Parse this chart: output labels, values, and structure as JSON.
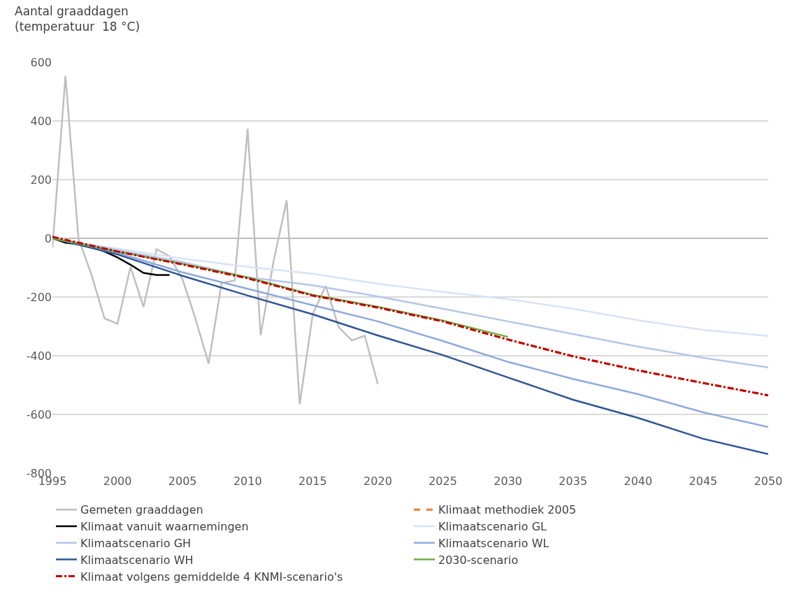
{
  "chart_data": {
    "type": "line",
    "ylabel": "Aantal graaddagen\n(temperatuur  18 °C)",
    "xlim": [
      1995,
      2050
    ],
    "xticks": [
      1995,
      2000,
      2005,
      2010,
      2015,
      2020,
      2025,
      2030,
      2035,
      2040,
      2045,
      2050
    ],
    "ylim": [
      -800,
      600
    ],
    "yticks": [
      -800,
      -600,
      -400,
      -200,
      0,
      200,
      400,
      600
    ],
    "grid": "y",
    "legend": "bottom",
    "marker": "none",
    "series": [
      {
        "name": "Gemeten graaddagen",
        "color": "#bfbfbf",
        "x": [
          1995,
          1996,
          1997,
          1998,
          1999,
          2000,
          2001,
          2002,
          2003,
          2004,
          2005,
          2006,
          2007,
          2008,
          2009,
          2010,
          2011,
          2012,
          2013,
          2014,
          2015,
          2016,
          2017,
          2018,
          2019,
          2020
        ],
        "values": [
          -33,
          553,
          0,
          -124,
          -273,
          -291,
          -97,
          -234,
          -37,
          -61,
          -140,
          -275,
          -427,
          -152,
          -144,
          373,
          -330,
          -77,
          129,
          -565,
          -259,
          -162,
          -303,
          -348,
          -332,
          -497
        ]
      },
      {
        "name": "Klimaat methodiek 2005",
        "color": "#ed7d31",
        "line_style": "dashed",
        "x": [
          1995,
          2000,
          2005,
          2010,
          2015,
          2020,
          2025,
          2030,
          2035,
          2040,
          2045,
          2050
        ],
        "values": [
          5,
          -45,
          -89,
          -136,
          -195,
          -236,
          -283,
          -345,
          -402,
          -450,
          -493,
          -535
        ]
      },
      {
        "name": "Klimaat vanuit waarnemingen",
        "color": "#000000",
        "x": [
          1995,
          1996,
          1997,
          1998,
          1999,
          2000,
          2001,
          2002,
          2003,
          2004
        ],
        "values": [
          0,
          -15,
          -20,
          -30,
          -45,
          -65,
          -90,
          -118,
          -125,
          -125
        ]
      },
      {
        "name": "Klimaatscenario GL",
        "color": "#dae3f3",
        "x": [
          1995,
          2000,
          2005,
          2010,
          2015,
          2020,
          2025,
          2030,
          2035,
          2040,
          2045,
          2050
        ],
        "values": [
          0,
          -35,
          -69,
          -97,
          -121,
          -155,
          -183,
          -207,
          -240,
          -279,
          -312,
          -333
        ]
      },
      {
        "name": "Klimaatscenario GH",
        "color": "#b4c7e7",
        "x": [
          1995,
          2000,
          2005,
          2010,
          2015,
          2020,
          2025,
          2030,
          2035,
          2040,
          2045,
          2050
        ],
        "values": [
          0,
          -40,
          -81,
          -133,
          -160,
          -198,
          -240,
          -283,
          -326,
          -369,
          -407,
          -440
        ]
      },
      {
        "name": "Klimaatscenario WL",
        "color": "#8faadc",
        "x": [
          1995,
          2000,
          2005,
          2010,
          2015,
          2020,
          2025,
          2030,
          2035,
          2040,
          2045,
          2050
        ],
        "values": [
          0,
          -50,
          -116,
          -172,
          -228,
          -283,
          -350,
          -421,
          -479,
          -531,
          -593,
          -643
        ]
      },
      {
        "name": "Klimaatscenario WH",
        "color": "#2f5597",
        "x": [
          1995,
          2000,
          2005,
          2010,
          2015,
          2020,
          2025,
          2030,
          2035,
          2040,
          2045,
          2050
        ],
        "values": [
          0,
          -55,
          -128,
          -195,
          -259,
          -331,
          -398,
          -474,
          -550,
          -612,
          -683,
          -735
        ]
      },
      {
        "name": "2030-scenario",
        "color": "#70ad47",
        "x": [
          1995,
          2000,
          2005,
          2010,
          2015,
          2020,
          2025,
          2030
        ],
        "values": [
          0,
          -45,
          -87,
          -133,
          -193,
          -233,
          -280,
          -336
        ]
      },
      {
        "name": "Klimaat volgens gemiddelde 4 KNMI-scenario's",
        "color": "#c00000",
        "line_style": "dashdot",
        "x": [
          1995,
          2000,
          2005,
          2010,
          2015,
          2020,
          2025,
          2030,
          2035,
          2040,
          2045,
          2050
        ],
        "values": [
          5,
          -45,
          -89,
          -136,
          -195,
          -236,
          -283,
          -345,
          -402,
          -450,
          -493,
          -535
        ]
      }
    ]
  }
}
